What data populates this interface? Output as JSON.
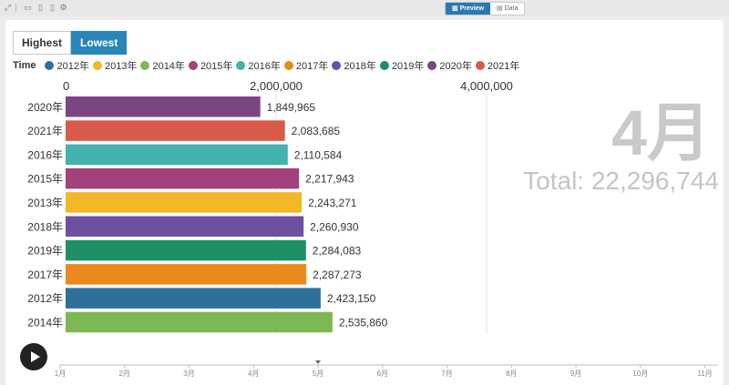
{
  "toolbar": {
    "preview_label": "Preview",
    "data_label": "Data"
  },
  "sort": {
    "highest_label": "Highest",
    "lowest_label": "Lowest"
  },
  "legend": {
    "title": "Time",
    "items": [
      {
        "label": "2012年",
        "color": "#2f6f9c"
      },
      {
        "label": "2013年",
        "color": "#f2b827"
      },
      {
        "label": "2014年",
        "color": "#7eb854"
      },
      {
        "label": "2015年",
        "color": "#a2417c"
      },
      {
        "label": "2016年",
        "color": "#43b1ad"
      },
      {
        "label": "2017年",
        "color": "#ea8a1c"
      },
      {
        "label": "2018年",
        "color": "#6f4fa0"
      },
      {
        "label": "2019年",
        "color": "#1e8f62"
      },
      {
        "label": "2020年",
        "color": "#7b4583"
      },
      {
        "label": "2021年",
        "color": "#d75a4a"
      }
    ]
  },
  "chart_data": {
    "type": "bar",
    "orientation": "horizontal",
    "categories": [
      "2020年",
      "2021年",
      "2016年",
      "2015年",
      "2013年",
      "2018年",
      "2019年",
      "2017年",
      "2012年",
      "2014年"
    ],
    "values": [
      1849965,
      2083685,
      2110584,
      2217943,
      2243271,
      2260930,
      2284083,
      2287273,
      2423150,
      2535860
    ],
    "value_labels": [
      "1,849,965",
      "2,083,685",
      "2,110,584",
      "2,217,943",
      "2,243,271",
      "2,260,930",
      "2,284,083",
      "2,287,273",
      "2,423,150",
      "2,535,860"
    ],
    "colors": [
      "#7b4583",
      "#d75a4a",
      "#43b1ad",
      "#a2417c",
      "#f2b827",
      "#6f4fa0",
      "#1e8f62",
      "#ea8a1c",
      "#2f6f9c",
      "#7eb854"
    ],
    "x_ticks": [
      0,
      2000000,
      4000000
    ],
    "x_tick_labels": [
      "0",
      "2,000,000",
      "4,000,000"
    ],
    "xlim": [
      0,
      4000000
    ],
    "grid": true,
    "sort": "lowest",
    "current_period": "4月",
    "total_label": "Total: 22,296,744"
  },
  "timeline": {
    "labels": [
      "1月",
      "2月",
      "3月",
      "4月",
      "5月",
      "6月",
      "7月",
      "8月",
      "9月",
      "10月",
      "11月"
    ],
    "current": 4
  }
}
